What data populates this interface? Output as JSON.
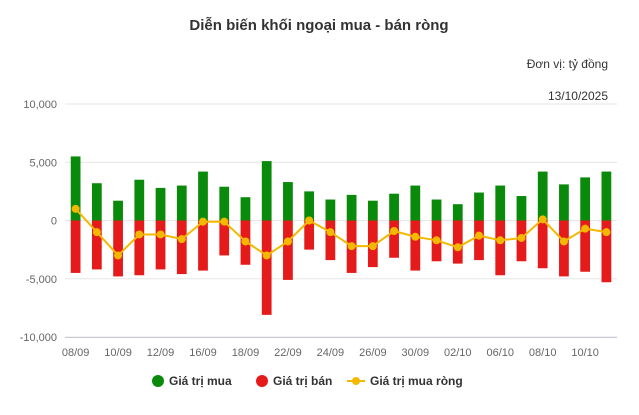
{
  "chart_data": {
    "type": "bar+line",
    "title": "Diễn biến khối ngoại mua - bán ròng",
    "unit_label": "Đơn vị: tỷ đồng",
    "date_label": "13/10/2025",
    "ylim": [
      -10000,
      10000
    ],
    "yticks": [
      10000,
      5000,
      0,
      -5000,
      -10000
    ],
    "ytick_labels": [
      "10,000",
      "5,000",
      "0",
      "-5,000",
      "-10,000"
    ],
    "grid": true,
    "legend_position": "bottom",
    "categories": [
      "08/09",
      "09/09",
      "10/09",
      "11/09",
      "12/09",
      "15/09",
      "16/09",
      "17/09",
      "18/09",
      "19/09",
      "22/09",
      "23/09",
      "24/09",
      "25/09",
      "26/09",
      "29/09",
      "30/09",
      "01/10",
      "02/10",
      "03/10",
      "06/10",
      "07/10",
      "08/10",
      "09/10",
      "10/10",
      "13/10"
    ],
    "xtick_labels": [
      "08/09",
      "",
      "10/09",
      "",
      "12/09",
      "",
      "16/09",
      "",
      "18/09",
      "",
      "22/09",
      "",
      "24/09",
      "",
      "26/09",
      "",
      "30/09",
      "",
      "02/10",
      "",
      "06/10",
      "",
      "08/10",
      "",
      "10/10",
      ""
    ],
    "series": [
      {
        "name": "Giá trị mua",
        "kind": "bar",
        "color": "#0a8a0a",
        "values": [
          5500,
          3200,
          1700,
          3500,
          2800,
          3000,
          4200,
          2900,
          2000,
          5100,
          3300,
          2500,
          1800,
          2200,
          1700,
          2300,
          3000,
          1800,
          1400,
          2400,
          3000,
          2100,
          4200,
          3100,
          3700,
          4200
        ]
      },
      {
        "name": "Giá trị bán",
        "kind": "bar",
        "color": "#e51b1b",
        "values": [
          -4500,
          -4200,
          -4800,
          -4700,
          -4200,
          -4600,
          -4300,
          -3000,
          -3800,
          -8100,
          -5100,
          -2500,
          -3400,
          -4500,
          -4000,
          -3200,
          -4300,
          -3500,
          -3700,
          -3400,
          -4700,
          -3500,
          -4100,
          -4800,
          -4400,
          -5300
        ]
      },
      {
        "name": "Giá trị mua ròng",
        "kind": "line",
        "color": "#f5b800",
        "values": [
          1000,
          -1000,
          -3000,
          -1200,
          -1200,
          -1600,
          -100,
          -100,
          -1800,
          -3000,
          -1800,
          0,
          -1000,
          -2200,
          -2200,
          -900,
          -1400,
          -1700,
          -2300,
          -1300,
          -1700,
          -1500,
          100,
          -1800,
          -700,
          -1000
        ]
      }
    ]
  }
}
